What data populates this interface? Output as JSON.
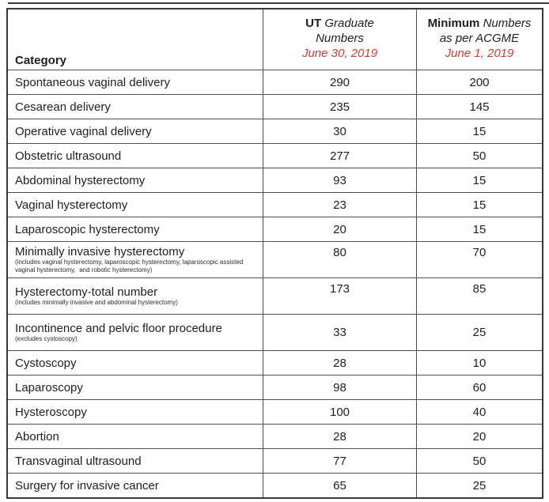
{
  "colors": {
    "date_text": "#ca3e36",
    "border": "#3f3f3f",
    "text": "#1e1e1e",
    "background": "#ffffff"
  },
  "table": {
    "header": {
      "category": "Category",
      "col2_bold": "UT",
      "col2_rest": "Graduate",
      "col2_line2": "Numbers",
      "col2_date": "June 30, 2019",
      "col3_bold": "Minimum",
      "col3_rest": "Numbers",
      "col3_line2": "as per ACGME",
      "col3_date": "June 1, 2019"
    },
    "rows": [
      {
        "category": "Spontaneous vaginal delivery",
        "ut": "290",
        "min": "200"
      },
      {
        "category": "Cesarean delivery",
        "ut": "235",
        "min": "145"
      },
      {
        "category": "Operative vaginal delivery",
        "ut": "30",
        "min": "15"
      },
      {
        "category": "Obstetric ultrasound",
        "ut": "277",
        "min": "50"
      },
      {
        "category": "Abdominal hysterectomy",
        "ut": "93",
        "min": "15"
      },
      {
        "category": "Vaginal hysterectomy",
        "ut": "23",
        "min": "15"
      },
      {
        "category": "Laparoscopic hysterectomy",
        "ut": "20",
        "min": "15"
      },
      {
        "category": "Minimally invasive hysterectomy",
        "note": "(includes vaginal hysterectomy, laparoscopic hysterectomy, laparoscopic assisted vaginal hysterectomy,  and robotic hysterectomy)",
        "ut": "80",
        "min": "70"
      },
      {
        "category": "Hysterectomy-total number",
        "note": "(includes minimally invasive and abdominal hysterectomy)",
        "ut": "173",
        "min": "85"
      },
      {
        "category": "Incontinence and pelvic floor procedure",
        "note": "(excludes cystoscopy)",
        "ut": "33",
        "min": "25"
      },
      {
        "category": "Cystoscopy",
        "ut": "28",
        "min": "10"
      },
      {
        "category": "Laparoscopy",
        "ut": "98",
        "min": "60"
      },
      {
        "category": "Hysteroscopy",
        "ut": "100",
        "min": "40"
      },
      {
        "category": "Abortion",
        "ut": "28",
        "min": "20"
      },
      {
        "category": "Transvaginal ultrasound",
        "ut": "77",
        "min": "50"
      },
      {
        "category": "Surgery for invasive cancer",
        "ut": "65",
        "min": "25"
      }
    ]
  }
}
